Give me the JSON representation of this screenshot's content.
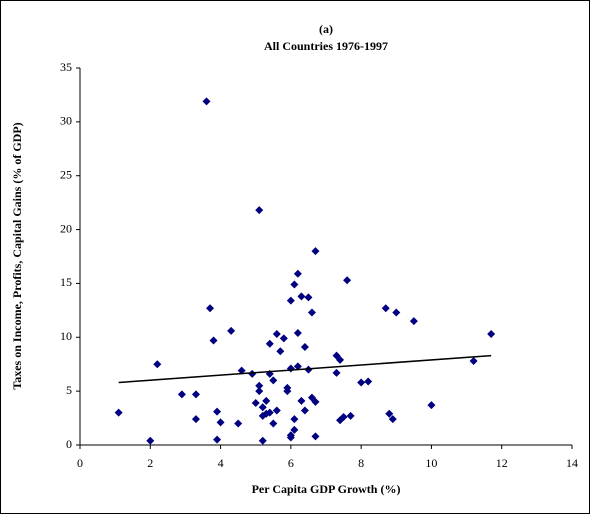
{
  "chart_data": {
    "type": "scatter",
    "title": "(a)",
    "subtitle": "All Countries 1976-1997",
    "x_label": "Per Capita GDP Growth (%)",
    "y_label": "Taxes on Income, Profits, Capital Gains (% of GDP)",
    "xlim": [
      0,
      14
    ],
    "xticks": [
      0,
      2,
      4,
      6,
      8,
      10,
      12,
      14
    ],
    "ylim": [
      0,
      35
    ],
    "yticks": [
      0,
      5,
      10,
      15,
      20,
      25,
      30,
      35
    ],
    "grid": false,
    "series": [
      {
        "color": "#000080",
        "x": [
          1.1,
          2.0,
          2.2,
          2.9,
          3.3,
          3.3,
          3.6,
          3.7,
          3.8,
          3.9,
          3.9,
          4.0,
          4.3,
          4.5,
          4.6,
          4.9,
          5.0,
          5.1,
          5.1,
          5.1,
          5.2,
          5.2,
          5.2,
          5.3,
          5.3,
          5.4,
          5.4,
          5.4,
          5.5,
          5.5,
          5.6,
          5.6,
          5.7,
          5.8,
          5.9,
          5.9,
          6.0,
          6.0,
          6.0,
          6.0,
          6.1,
          6.1,
          6.1,
          6.2,
          6.2,
          6.2,
          6.3,
          6.3,
          6.4,
          6.4,
          6.5,
          6.5,
          6.6,
          6.6,
          6.7,
          6.7,
          6.7,
          7.3,
          7.3,
          7.4,
          7.4,
          7.5,
          7.6,
          7.7,
          8.0,
          8.2,
          8.7,
          8.8,
          8.9,
          9.0,
          9.5,
          10.0,
          11.2,
          11.7
        ],
        "values": [
          3.0,
          0.4,
          7.5,
          4.7,
          4.7,
          2.4,
          31.9,
          12.7,
          9.7,
          3.1,
          0.5,
          2.1,
          10.6,
          2.0,
          6.9,
          6.6,
          3.9,
          5.5,
          21.8,
          5.0,
          2.7,
          0.4,
          3.5,
          2.9,
          4.1,
          9.4,
          6.6,
          3.0,
          6.0,
          2.0,
          10.3,
          3.2,
          8.7,
          9.9,
          5.3,
          5.0,
          7.1,
          0.7,
          0.9,
          13.4,
          1.4,
          2.4,
          14.9,
          10.4,
          7.3,
          15.9,
          13.8,
          4.1,
          9.1,
          3.2,
          13.7,
          7.0,
          12.3,
          4.4,
          18.0,
          4.0,
          0.8,
          8.3,
          6.7,
          7.9,
          2.3,
          2.6,
          15.3,
          2.7,
          5.8,
          5.9,
          12.7,
          2.9,
          2.4,
          12.3,
          11.5,
          3.7,
          7.8,
          10.3
        ]
      }
    ],
    "trendline": {
      "color": "#000000",
      "x": [
        1.1,
        11.7
      ],
      "values": [
        5.8,
        8.3
      ]
    }
  }
}
